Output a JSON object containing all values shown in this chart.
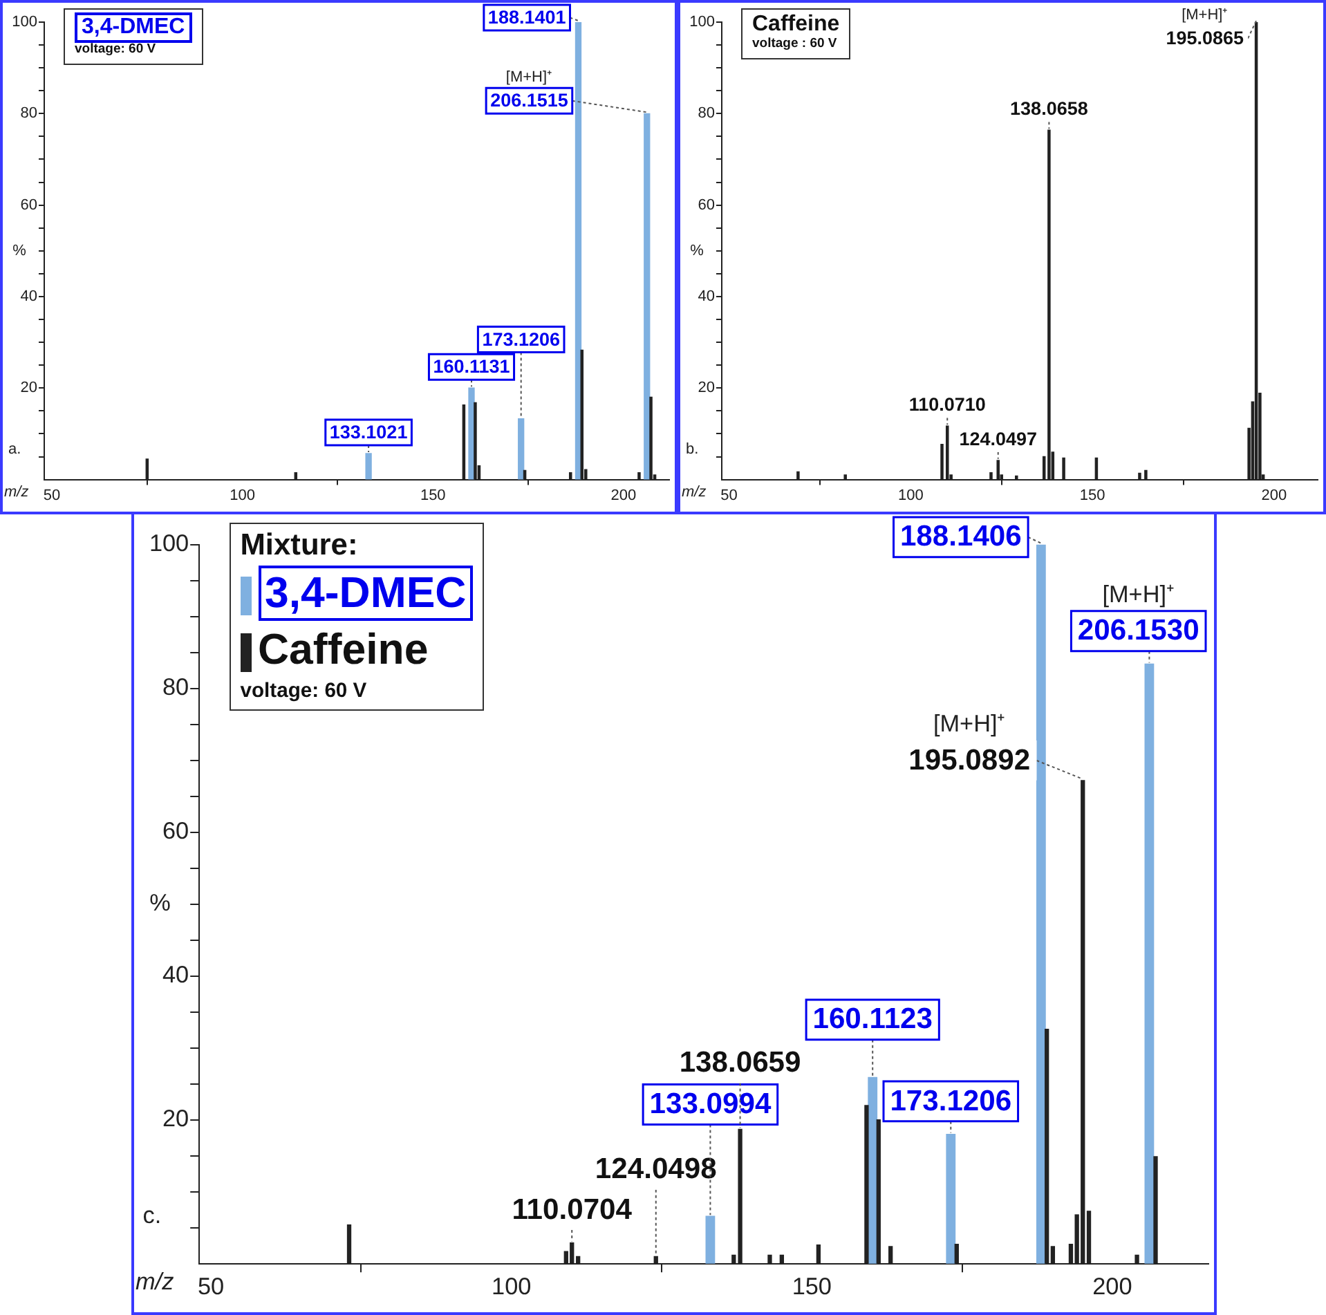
{
  "chart_data": [
    {
      "type": "bar",
      "title": "3,4-DMEC",
      "subtitle": "voltage: 60 V",
      "xlabel": "m/z",
      "ylabel": "%",
      "x": [
        75,
        114,
        133.1021,
        158.1,
        160.1131,
        161.1,
        162.1,
        173.1206,
        174.1,
        186.1,
        188.1401,
        189.1,
        190.1,
        204.1,
        206.1515,
        207.2,
        208.2
      ],
      "values": [
        4.5,
        1.5,
        5.7,
        16.3,
        20,
        16.8,
        3,
        13.3,
        2,
        1.5,
        100,
        28.3,
        2.2,
        1.5,
        80,
        18,
        1
      ],
      "colors": [
        "#222222",
        "#222222",
        "#7fb0e0",
        "#222222",
        "#7fb0e0",
        "#222222",
        "#222222",
        "#7fb0e0",
        "#222222",
        "#222222",
        "#7fb0e0",
        "#222222",
        "#222222",
        "#222222",
        "#7fb0e0",
        "#222222",
        "#222222"
      ],
      "xlim": [
        48,
        212
      ],
      "xticks": [
        50,
        100,
        150,
        200
      ],
      "ylim": [
        0,
        100
      ],
      "yticks": [
        {
          "value": 5,
          "label": null
        },
        {
          "value": 10,
          "label": null
        },
        {
          "value": 15,
          "label": null
        },
        20,
        {
          "value": 25,
          "label": null
        },
        {
          "value": 30,
          "label": null
        },
        {
          "value": 35,
          "label": null
        },
        40,
        {
          "value": 45,
          "label": null
        },
        {
          "value": 50,
          "label": null
        },
        {
          "value": 55,
          "label": null
        },
        60,
        {
          "value": 65,
          "label": null
        },
        {
          "value": 70,
          "label": null
        },
        {
          "value": 75,
          "label": null
        },
        80,
        {
          "value": 85,
          "label": null
        },
        {
          "value": 90,
          "label": null
        },
        {
          "value": 95,
          "label": null
        },
        100
      ],
      "annotations": [
        {
          "text": "133.1021",
          "x": 133.1021,
          "y": 5.7
        },
        {
          "text": "160.1131",
          "x": 160.1131,
          "y": 20
        },
        {
          "text": "173.1206",
          "x": 173.1206,
          "y": 13.3
        },
        {
          "text": "188.1401",
          "x": 188.1401,
          "y": 100
        },
        {
          "text": "206.1515",
          "x": 206.1515,
          "y": 80
        },
        "[M+H]⁺",
        "a."
      ]
    },
    {
      "type": "bar",
      "title": "Caffeine",
      "subtitle": "voltage : 60 V",
      "xlabel": "m/z",
      "ylabel": "%",
      "color": "#222222",
      "x": [
        69,
        82,
        108.6,
        110.071,
        111.1,
        122.1,
        124.0497,
        125,
        129.1,
        136.7,
        138.0658,
        139.1,
        142.1,
        151.1,
        163,
        164.7,
        193.1,
        194.1,
        195.0865,
        196.1,
        197
      ],
      "values": [
        1.7,
        1,
        7.7,
        11.7,
        1,
        1.5,
        4.2,
        1,
        0.8,
        5,
        76.4,
        6,
        4.7,
        4.7,
        1.4,
        2,
        11.2,
        17,
        100,
        18.9,
        1
      ],
      "xlim": [
        48,
        212
      ],
      "xticks": [
        50,
        100,
        150,
        200
      ],
      "ylim": [
        0,
        100
      ],
      "yticks": [
        {
          "value": 5,
          "label": null
        },
        {
          "value": 10,
          "label": null
        },
        {
          "value": 15,
          "label": null
        },
        20,
        {
          "value": 25,
          "label": null
        },
        {
          "value": 30,
          "label": null
        },
        {
          "value": 35,
          "label": null
        },
        40,
        {
          "value": 45,
          "label": null
        },
        {
          "value": 50,
          "label": null
        },
        {
          "value": 55,
          "label": null
        },
        60,
        {
          "value": 65,
          "label": null
        },
        {
          "value": 70,
          "label": null
        },
        {
          "value": 75,
          "label": null
        },
        80,
        {
          "value": 85,
          "label": null
        },
        {
          "value": 90,
          "label": null
        },
        {
          "value": 95,
          "label": null
        },
        100
      ],
      "annotations": [
        {
          "text": "110.0710",
          "x": 110.071,
          "y": 11.7
        },
        {
          "text": "124.0497",
          "x": 124.0497,
          "y": 4.2
        },
        {
          "text": "138.0658",
          "x": 138.0658,
          "y": 76.4
        },
        {
          "text": "195.0865",
          "x": 195.0865,
          "y": 100
        },
        "[M+H]⁺",
        "b."
      ]
    },
    {
      "type": "bar",
      "title": "Mixture:",
      "subtitle": "voltage: 60 V",
      "xlabel": "m/z",
      "ylabel": "%",
      "legend": "top left",
      "series": [
        {
          "name": "3,4-DMEC",
          "color": "#7fb0e0",
          "x": [
            133.0994,
            160.1123,
            173.1206,
            188.1406,
            206.153
          ],
          "values": [
            6.6,
            25.9,
            18,
            100,
            83.4
          ]
        },
        {
          "name": "Caffeine",
          "color": "#222222",
          "x": [
            110.0704,
            124.0498,
            138.0659,
            195.0892
          ],
          "values": [
            2.9,
            1,
            18.7,
            67.2
          ]
        },
        {
          "color": "#222222",
          "x": [
            73,
            109.1,
            111.1,
            137,
            143,
            145,
            151.1,
            159.1,
            161.1,
            163.1,
            174.1,
            189.1,
            190.1,
            193.1,
            194.1,
            196.1,
            204.1,
            207.2
          ],
          "values": [
            5.4,
            1.7,
            1,
            1.2,
            1.2,
            1.2,
            2.6,
            22,
            20,
            2.4,
            2.7,
            32.6,
            2.4,
            2.7,
            6.8,
            7.3,
            1.2,
            14.9
          ]
        }
      ],
      "xlim": [
        48,
        216
      ],
      "xticks": [
        50,
        100,
        150,
        200
      ],
      "ylim": [
        0,
        100
      ],
      "yticks": [
        {
          "value": 5,
          "label": null
        },
        {
          "value": 10,
          "label": null
        },
        {
          "value": 15,
          "label": null
        },
        20,
        {
          "value": 25,
          "label": null
        },
        {
          "value": 30,
          "label": null
        },
        {
          "value": 35,
          "label": null
        },
        40,
        {
          "value": 45,
          "label": null
        },
        {
          "value": 50,
          "label": null
        },
        {
          "value": 55,
          "label": null
        },
        60,
        {
          "value": 65,
          "label": null
        },
        {
          "value": 70,
          "label": null
        },
        {
          "value": 75,
          "label": null
        },
        80,
        {
          "value": 85,
          "label": null
        },
        {
          "value": 90,
          "label": null
        },
        {
          "value": 95,
          "label": null
        },
        100
      ],
      "annotations": [
        {
          "text": "110.0704",
          "x": 110.0704,
          "y": 2.9
        },
        {
          "text": "124.0498",
          "x": 124.0498,
          "y": 1
        },
        {
          "text": "133.0994",
          "x": 133.0994,
          "y": 6.6
        },
        {
          "text": "138.0659",
          "x": 138.0659,
          "y": 18.7
        },
        {
          "text": "160.1123",
          "x": 160.1123,
          "y": 25.9
        },
        {
          "text": "173.1206",
          "x": 173.1206,
          "y": 18
        },
        {
          "text": "188.1406",
          "x": 188.1406,
          "y": 100
        },
        {
          "text": "206.1530",
          "x": 206.153,
          "y": 83.4
        },
        "[M+H]⁺",
        {
          "text": "195.0892",
          "x": 195.0892,
          "y": 67.2
        },
        "[M+H]⁺",
        "c."
      ]
    }
  ]
}
